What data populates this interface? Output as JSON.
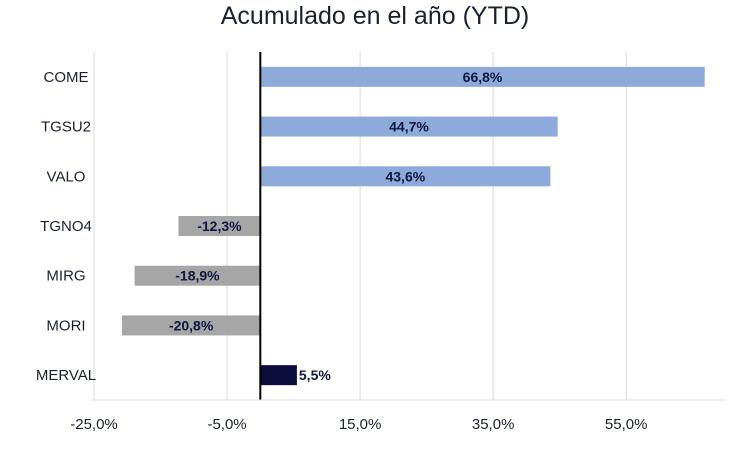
{
  "chart_data": {
    "type": "bar",
    "orientation": "horizontal",
    "title": "Acumulado en el año (YTD)",
    "xlabel": "",
    "ylabel": "",
    "categories": [
      "COME",
      "TGSU2",
      "VALO",
      "TGNO4",
      "MIRG",
      "MORI",
      "MERVAL"
    ],
    "values": [
      66.8,
      44.7,
      43.6,
      -12.3,
      -18.9,
      -20.8,
      5.5
    ],
    "value_labels": [
      "66,8%",
      "44,7%",
      "43,6%",
      "-12,3%",
      "-18,9%",
      "-20,8%",
      "5,5%"
    ],
    "xlim": [
      -25,
      70
    ],
    "xticks": [
      -25,
      -5,
      15,
      35,
      55
    ],
    "xtick_labels": [
      "-25,0%",
      "-5,0%",
      "15,0%",
      "35,0%",
      "55,0%"
    ],
    "grid": "vertical",
    "legend": "none",
    "colors": {
      "positive": "#8eaadb",
      "negative": "#a6a6a6",
      "highlight": "#0d0d3d",
      "gridline": "#d9d9d9",
      "axis": "#000000"
    },
    "highlight_category": "MERVAL"
  }
}
